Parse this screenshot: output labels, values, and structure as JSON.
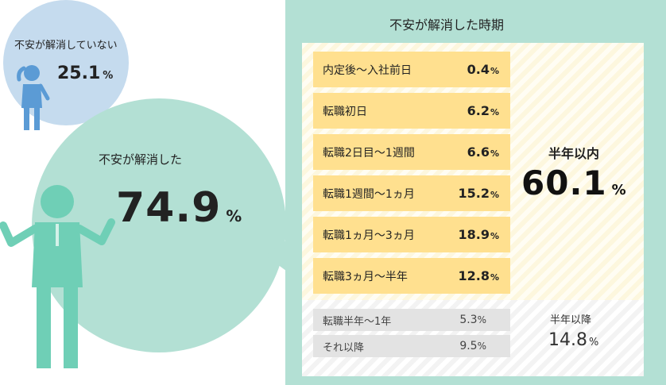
{
  "unresolved": {
    "label": "不安が解消していない",
    "value": "25.1",
    "unit": "%"
  },
  "resolved": {
    "label": "不安が解消した",
    "value": "74.9",
    "unit": "%"
  },
  "panel": {
    "title": "不安が解消した時期",
    "within_half_year": {
      "label": "半年以内",
      "value": "60.1",
      "unit": "%"
    },
    "after_half_year": {
      "label": "半年以降",
      "value": "14.8",
      "unit": "%"
    }
  },
  "chart_data": {
    "type": "table",
    "title": "不安が解消した時期",
    "rows": [
      {
        "label": "内定後〜入社前日",
        "value": "0.4",
        "unit": "%"
      },
      {
        "label": "転職初日",
        "value": "6.2",
        "unit": "%"
      },
      {
        "label": "転職2日目〜1週間",
        "value": "6.6",
        "unit": "%"
      },
      {
        "label": "転職1週間〜1ヵ月",
        "value": "15.2",
        "unit": "%"
      },
      {
        "label": "転職1ヵ月〜3ヵ月",
        "value": "18.9",
        "unit": "%"
      },
      {
        "label": "転職3ヵ月〜半年",
        "value": "12.8",
        "unit": "%"
      }
    ],
    "later_rows": [
      {
        "label": "転職半年〜1年",
        "value": "5.3",
        "unit": "%"
      },
      {
        "label": "それ以降",
        "value": "9.5",
        "unit": "%"
      }
    ],
    "colors": {
      "panel_bg": "#b3e0d4",
      "within_bg": "#ffe08f",
      "later_bg": "#e3e3e3",
      "blue_circle": "#c5dbee",
      "green_circle": "#b3e0d4"
    }
  }
}
